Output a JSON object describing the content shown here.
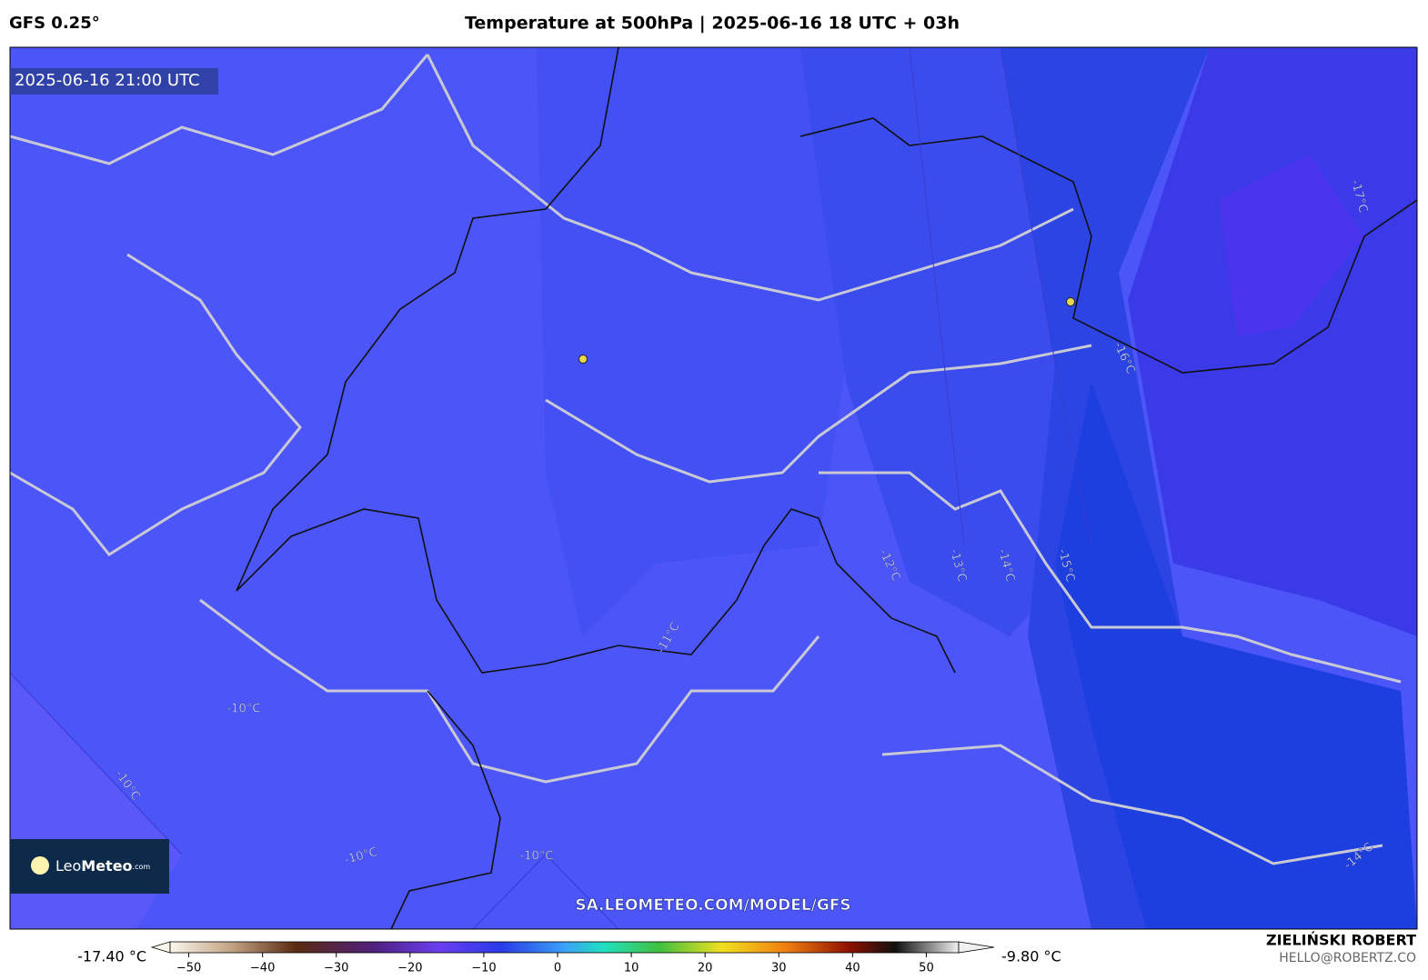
{
  "header": {
    "model": "GFS 0.25°",
    "title": "Temperature at 500hPa | 2025-06-16 18 UTC + 03h"
  },
  "map": {
    "timestamp": "2025-06-16 21:00 UTC",
    "contour_labels": [
      "-10°C",
      "-10°C",
      "-10°C",
      "-10°C",
      "-11°C",
      "-12°C",
      "-13°C",
      "-14°C",
      "-15°C",
      "-16°C",
      "-17°C",
      "-14°C"
    ],
    "watermark": "SA.LEOMETEO.COM/MODEL/GFS",
    "logo": {
      "light": "Leo",
      "bold": "Meteo",
      "suffix": ".com"
    }
  },
  "colorbar": {
    "min_label": "-17.40 °C",
    "max_label": "-9.80 °C",
    "lim": [
      -55,
      55
    ],
    "ticks": [
      {
        "value": -50,
        "label": "−50"
      },
      {
        "value": -40,
        "label": "−40"
      },
      {
        "value": -30,
        "label": "−30"
      },
      {
        "value": -20,
        "label": "−20"
      },
      {
        "value": -10,
        "label": "−10"
      },
      0,
      10,
      20,
      30,
      40,
      50
    ]
  },
  "credit": {
    "name": "ZIELIŃSKI ROBERT",
    "email": "HELLO@ROBERTZ.CO"
  }
}
